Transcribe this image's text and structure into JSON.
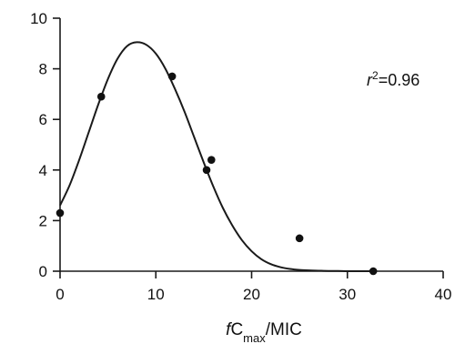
{
  "chart_data": {
    "type": "scatter",
    "xlabel_parts": {
      "italic": "f",
      "main": "C",
      "sub": "max",
      "rest": "/MIC"
    },
    "ylabel": "",
    "xlim": [
      0,
      40
    ],
    "ylim": [
      0,
      10
    ],
    "xticks": [
      0,
      10,
      20,
      30,
      40
    ],
    "yticks": [
      0,
      2,
      4,
      6,
      8,
      10
    ],
    "grid": false,
    "points": [
      {
        "x": 0,
        "y": 2.3
      },
      {
        "x": 4.3,
        "y": 6.9
      },
      {
        "x": 11.7,
        "y": 7.7
      },
      {
        "x": 15.3,
        "y": 4.0
      },
      {
        "x": 15.8,
        "y": 4.4
      },
      {
        "x": 25,
        "y": 1.3
      },
      {
        "x": 32.7,
        "y": 0
      }
    ],
    "fit_curve": {
      "type": "gaussian-like",
      "x": [
        0,
        1,
        2,
        3,
        4,
        5,
        6,
        7,
        8,
        9,
        10,
        11,
        12,
        13,
        14,
        15,
        16,
        17,
        18,
        19,
        20,
        21,
        22,
        23,
        24,
        25,
        26,
        27,
        28,
        29,
        30,
        31,
        32,
        33
      ],
      "y": [
        2.6,
        3.4,
        4.4,
        5.5,
        6.6,
        7.6,
        8.4,
        8.9,
        9.05,
        8.95,
        8.6,
        8.0,
        7.2,
        6.3,
        5.3,
        4.3,
        3.35,
        2.5,
        1.8,
        1.22,
        0.79,
        0.48,
        0.28,
        0.16,
        0.09,
        0.05,
        0.03,
        0.02,
        0.01,
        0.01,
        0.0,
        0.0,
        0.0,
        0.0
      ]
    },
    "annotation": {
      "italic": "r",
      "sup": "2",
      "rest": "=0.96"
    }
  }
}
